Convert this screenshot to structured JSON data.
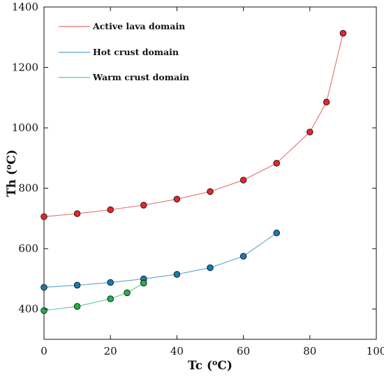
{
  "chart_data": {
    "type": "line",
    "xlabel_base": "Tc (",
    "xlabel_sup": "o",
    "xlabel_tail": "C)",
    "ylabel_base": "Th (",
    "ylabel_sup": "o",
    "ylabel_tail": "C)",
    "xlim": [
      0,
      100
    ],
    "ylim": [
      300,
      1400
    ],
    "xticks": [
      0,
      20,
      40,
      60,
      80,
      100
    ],
    "yticks": [
      400,
      600,
      800,
      1000,
      1200,
      1400
    ],
    "grid": false,
    "legend_position": "top-left",
    "series": [
      {
        "name": "Active lava domain",
        "color": "#e8262a",
        "line_color": "#e07070",
        "x": [
          0,
          10,
          20,
          30,
          40,
          50,
          60,
          70,
          80,
          85,
          90
        ],
        "y": [
          706,
          716,
          729,
          744,
          764,
          789,
          827,
          883,
          986,
          1085,
          1313
        ]
      },
      {
        "name": "Hot crust domain",
        "color": "#1a7ab5",
        "line_color": "#5aa5cc",
        "x": [
          0,
          10,
          20,
          30,
          40,
          50,
          60,
          70
        ],
        "y": [
          472,
          479,
          488,
          500,
          515,
          537,
          575,
          652
        ]
      },
      {
        "name": "Warm crust domain",
        "color": "#22b14c",
        "line_color": "#66c98a",
        "x": [
          0,
          10,
          20,
          25,
          30
        ],
        "y": [
          395,
          409,
          434,
          454,
          486
        ]
      }
    ]
  }
}
